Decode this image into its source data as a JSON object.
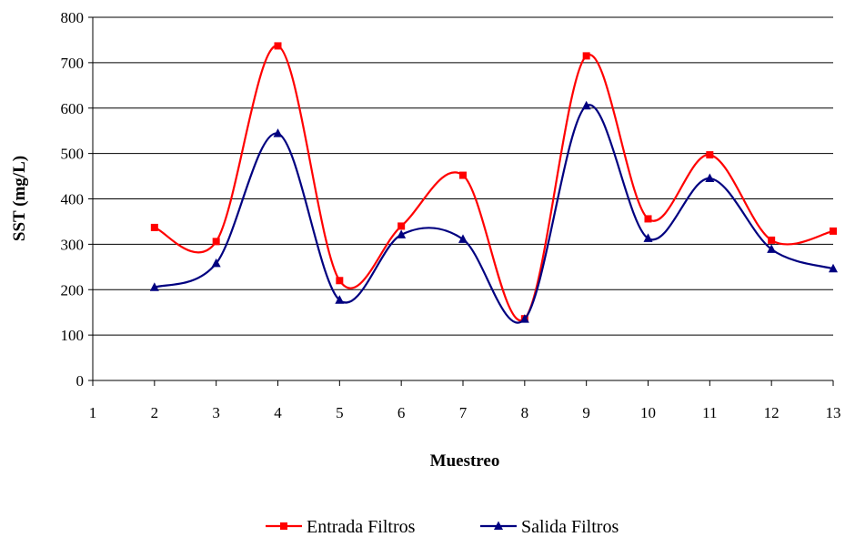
{
  "chart_data": {
    "type": "line",
    "title": "",
    "xlabel": "Muestreo",
    "ylabel": "SST (mg/L)",
    "x_ticks": [
      "1",
      "2",
      "3",
      "4",
      "5",
      "6",
      "7",
      "8",
      "9",
      "10",
      "11",
      "12",
      "13"
    ],
    "y_ticks": [
      "0",
      "100",
      "200",
      "300",
      "400",
      "500",
      "600",
      "700",
      "800"
    ],
    "xlim": [
      1,
      13
    ],
    "ylim": [
      0,
      800
    ],
    "smooth": true,
    "grid": "horizontal",
    "legend_position": "bottom",
    "series": [
      {
        "name": "Entrada Filtros",
        "color": "#ff0000",
        "marker": "square",
        "x": [
          2,
          3,
          4,
          5,
          6,
          7,
          8,
          9,
          10,
          11,
          12,
          13
        ],
        "values": [
          337,
          306,
          737,
          220,
          340,
          452,
          136,
          715,
          356,
          497,
          309,
          329
        ]
      },
      {
        "name": "Salida Filtros",
        "color": "#000080",
        "marker": "triangle",
        "x": [
          2,
          3,
          4,
          5,
          6,
          7,
          8,
          9,
          10,
          11,
          12,
          13
        ],
        "values": [
          205,
          258,
          544,
          177,
          321,
          311,
          135,
          605,
          313,
          445,
          289,
          246
        ]
      }
    ]
  }
}
